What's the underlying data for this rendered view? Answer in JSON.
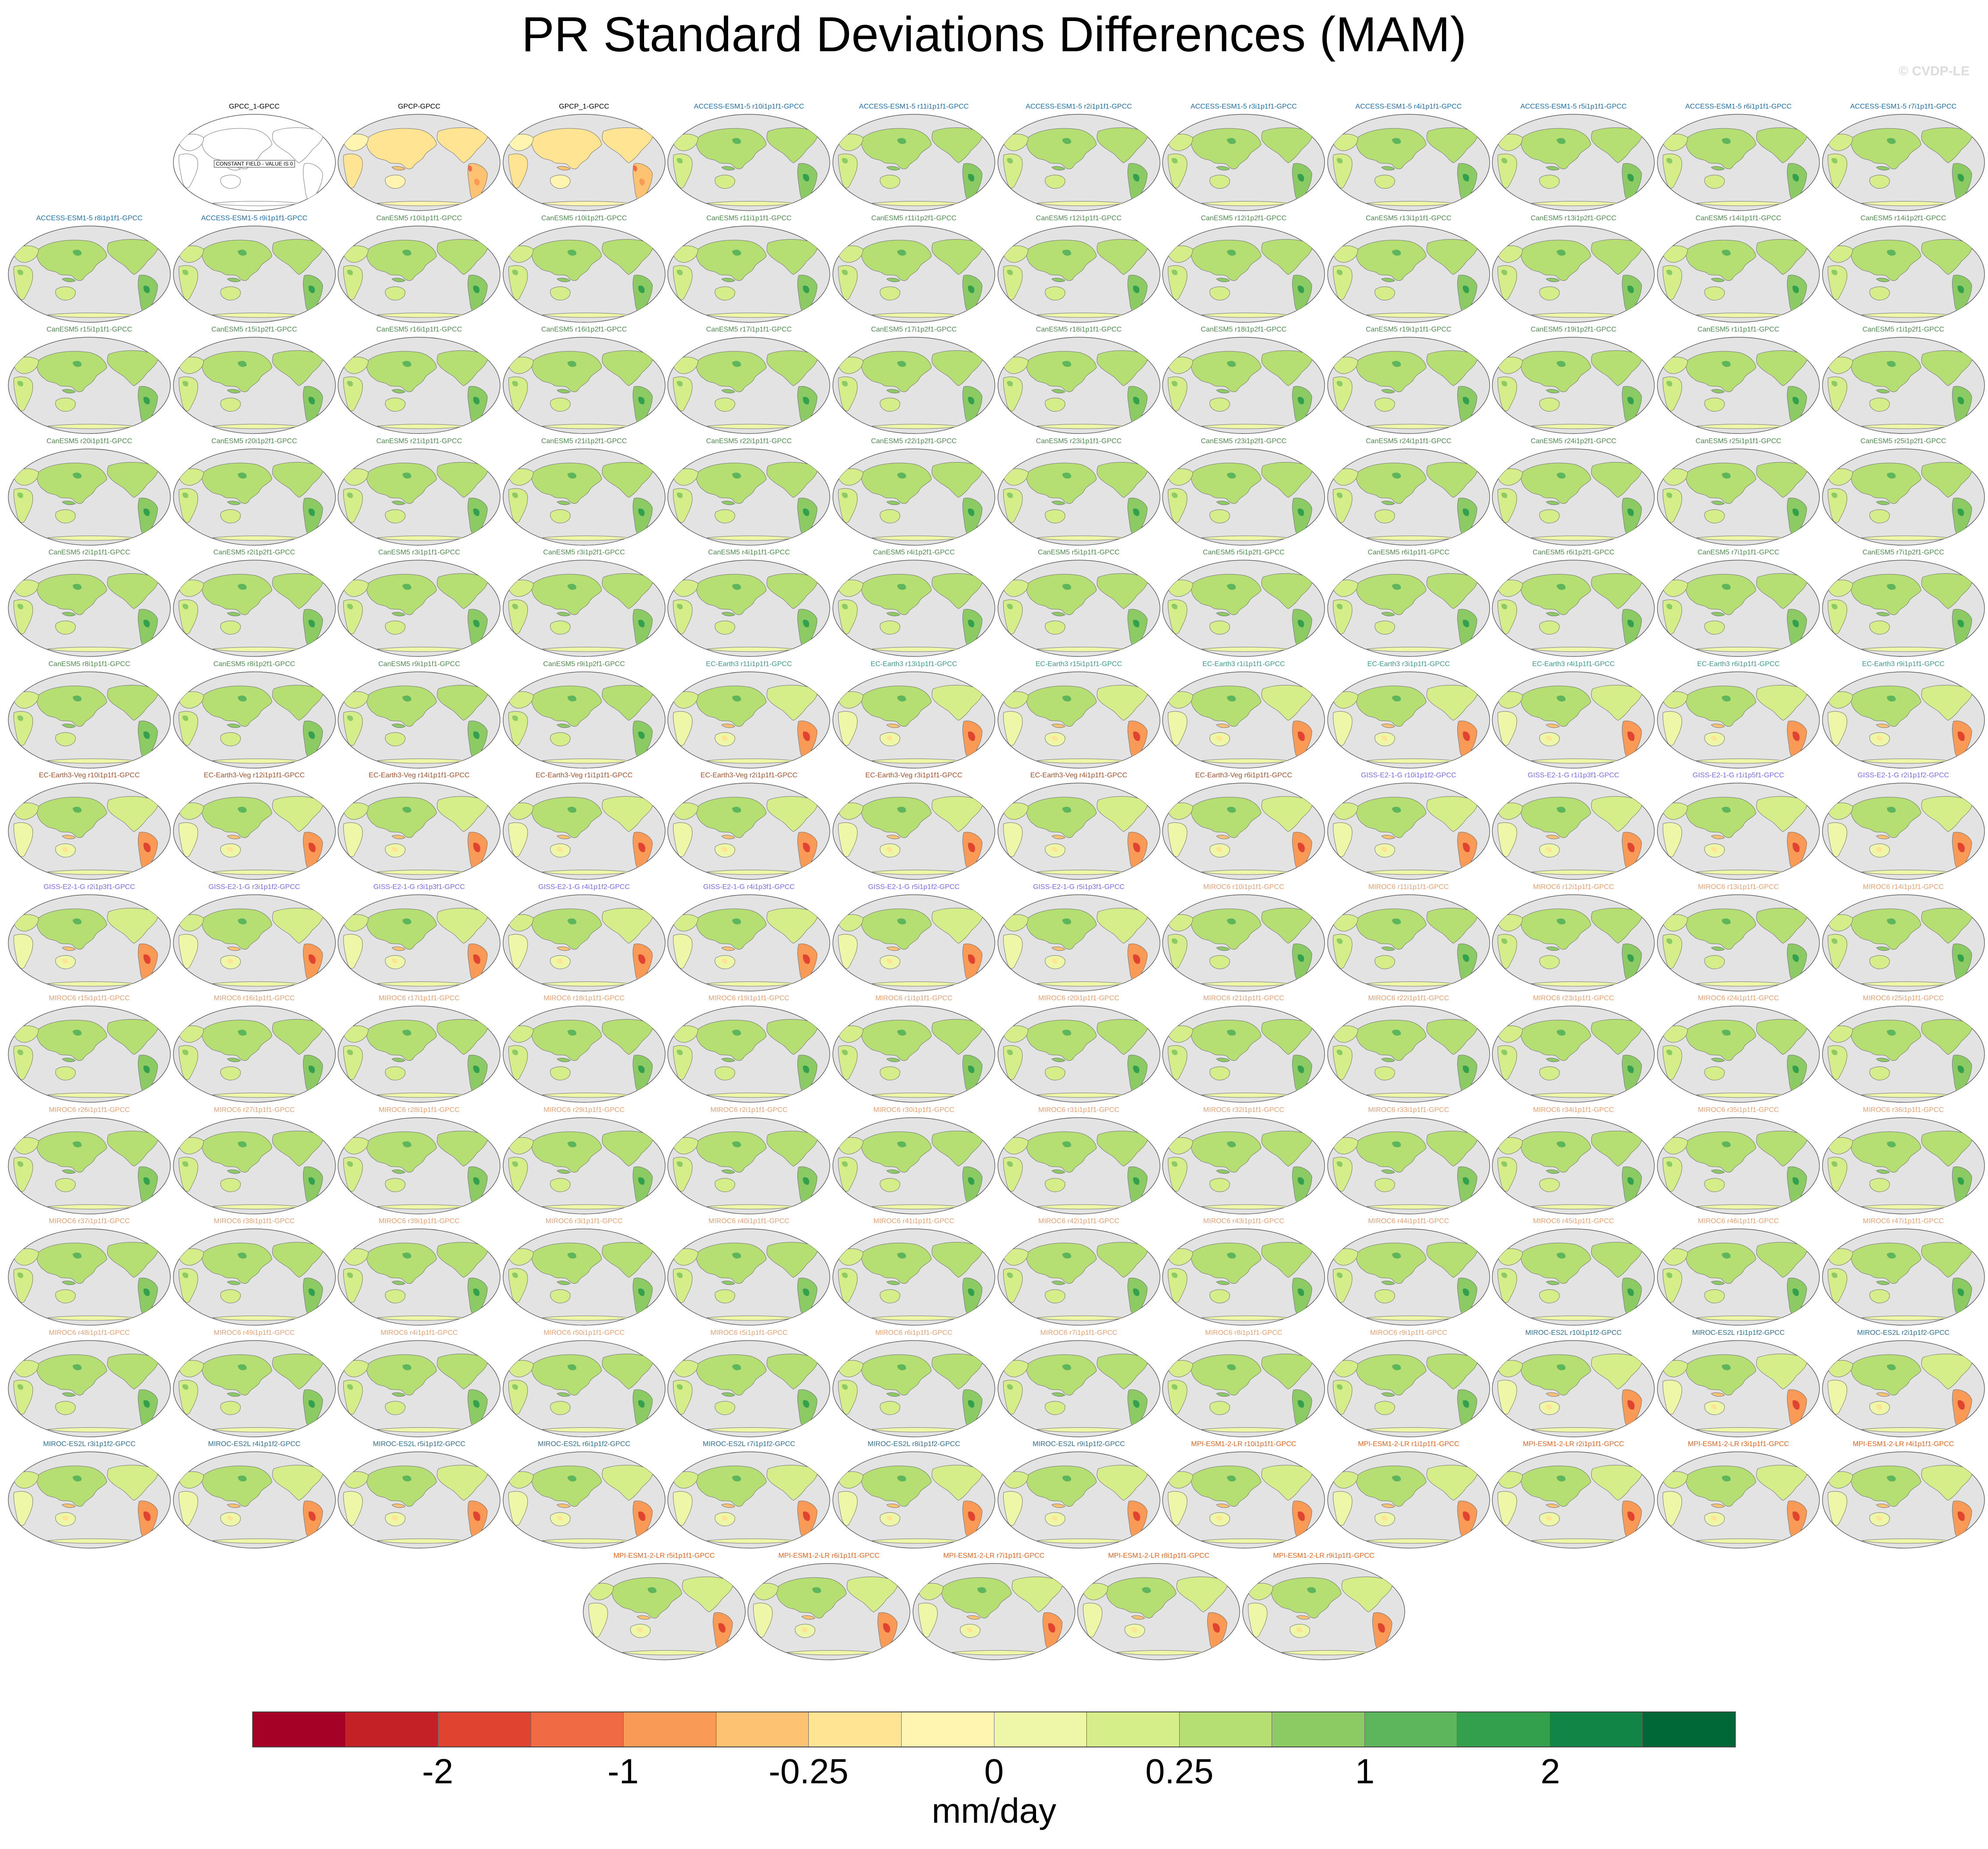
{
  "title": "PR Standard Deviations Differences (MAM)",
  "watermark": "© CVDP-LE",
  "colors": {
    "ocean": "#e3e3e3",
    "coast": "#777777",
    "model_title_colors": {
      "obs": "#000000",
      "ACCESS-ESM1-5": "#1f6fa8",
      "CanESM5": "#4f8a4f",
      "EC-Earth3": "#3c9a8a",
      "EC-Earth3-Veg": "#a0522d",
      "GISS-E2-1-G": "#7b68ee",
      "MIROC6": "#e8a070",
      "MIROC-ES2L": "#2f6f8f",
      "MPI-ESM1-2-LR": "#e8641e"
    }
  },
  "panels": [
    {
      "label": "GPCC_1-GPCC",
      "style": "constant",
      "group": "obs",
      "note": "CONSTANT FIELD - VALUE IS 0"
    },
    {
      "label": "GPCP-GPCC",
      "style": "obs",
      "group": "obs"
    },
    {
      "label": "GPCP_1-GPCC",
      "style": "obs",
      "group": "obs"
    },
    {
      "label": "ACCESS-ESM1-5 r10i1p1f1-GPCC",
      "style": "green",
      "group": "ACCESS-ESM1-5"
    },
    {
      "label": "ACCESS-ESM1-5 r11i1p1f1-GPCC",
      "style": "green",
      "group": "ACCESS-ESM1-5"
    },
    {
      "label": "ACCESS-ESM1-5 r2i1p1f1-GPCC",
      "style": "green",
      "group": "ACCESS-ESM1-5"
    },
    {
      "label": "ACCESS-ESM1-5 r3i1p1f1-GPCC",
      "style": "green",
      "group": "ACCESS-ESM1-5"
    },
    {
      "label": "ACCESS-ESM1-5 r4i1p1f1-GPCC",
      "style": "green",
      "group": "ACCESS-ESM1-5"
    },
    {
      "label": "ACCESS-ESM1-5 r5i1p1f1-GPCC",
      "style": "green",
      "group": "ACCESS-ESM1-5"
    },
    {
      "label": "ACCESS-ESM1-5 r6i1p1f1-GPCC",
      "style": "green",
      "group": "ACCESS-ESM1-5"
    },
    {
      "label": "ACCESS-ESM1-5 r7i1p1f1-GPCC",
      "style": "green",
      "group": "ACCESS-ESM1-5"
    },
    {
      "label": "ACCESS-ESM1-5 r8i1p1f1-GPCC",
      "style": "green",
      "group": "ACCESS-ESM1-5"
    },
    {
      "label": "ACCESS-ESM1-5 r9i1p1f1-GPCC",
      "style": "green",
      "group": "ACCESS-ESM1-5"
    },
    {
      "label": "CanESM5 r10i1p1f1-GPCC",
      "style": "green",
      "group": "CanESM5"
    },
    {
      "label": "CanESM5 r10i1p2f1-GPCC",
      "style": "green",
      "group": "CanESM5"
    },
    {
      "label": "CanESM5 r11i1p1f1-GPCC",
      "style": "green",
      "group": "CanESM5"
    },
    {
      "label": "CanESM5 r11i1p2f1-GPCC",
      "style": "green",
      "group": "CanESM5"
    },
    {
      "label": "CanESM5 r12i1p1f1-GPCC",
      "style": "green",
      "group": "CanESM5"
    },
    {
      "label": "CanESM5 r12i1p2f1-GPCC",
      "style": "green",
      "group": "CanESM5"
    },
    {
      "label": "CanESM5 r13i1p1f1-GPCC",
      "style": "green",
      "group": "CanESM5"
    },
    {
      "label": "CanESM5 r13i1p2f1-GPCC",
      "style": "green",
      "group": "CanESM5"
    },
    {
      "label": "CanESM5 r14i1p1f1-GPCC",
      "style": "green",
      "group": "CanESM5"
    },
    {
      "label": "CanESM5 r14i1p2f1-GPCC",
      "style": "green",
      "group": "CanESM5"
    },
    {
      "label": "CanESM5 r15i1p1f1-GPCC",
      "style": "green",
      "group": "CanESM5"
    },
    {
      "label": "CanESM5 r15i1p2f1-GPCC",
      "style": "green",
      "group": "CanESM5"
    },
    {
      "label": "CanESM5 r16i1p1f1-GPCC",
      "style": "green",
      "group": "CanESM5"
    },
    {
      "label": "CanESM5 r16i1p2f1-GPCC",
      "style": "green",
      "group": "CanESM5"
    },
    {
      "label": "CanESM5 r17i1p1f1-GPCC",
      "style": "green",
      "group": "CanESM5"
    },
    {
      "label": "CanESM5 r17i1p2f1-GPCC",
      "style": "green",
      "group": "CanESM5"
    },
    {
      "label": "CanESM5 r18i1p1f1-GPCC",
      "style": "green",
      "group": "CanESM5"
    },
    {
      "label": "CanESM5 r18i1p2f1-GPCC",
      "style": "green",
      "group": "CanESM5"
    },
    {
      "label": "CanESM5 r19i1p1f1-GPCC",
      "style": "green",
      "group": "CanESM5"
    },
    {
      "label": "CanESM5 r19i1p2f1-GPCC",
      "style": "green",
      "group": "CanESM5"
    },
    {
      "label": "CanESM5 r1i1p1f1-GPCC",
      "style": "green",
      "group": "CanESM5"
    },
    {
      "label": "CanESM5 r1i1p2f1-GPCC",
      "style": "green",
      "group": "CanESM5"
    },
    {
      "label": "CanESM5 r20i1p1f1-GPCC",
      "style": "green",
      "group": "CanESM5"
    },
    {
      "label": "CanESM5 r20i1p2f1-GPCC",
      "style": "green",
      "group": "CanESM5"
    },
    {
      "label": "CanESM5 r21i1p1f1-GPCC",
      "style": "green",
      "group": "CanESM5"
    },
    {
      "label": "CanESM5 r21i1p2f1-GPCC",
      "style": "green",
      "group": "CanESM5"
    },
    {
      "label": "CanESM5 r22i1p1f1-GPCC",
      "style": "green",
      "group": "CanESM5"
    },
    {
      "label": "CanESM5 r22i1p2f1-GPCC",
      "style": "green",
      "group": "CanESM5"
    },
    {
      "label": "CanESM5 r23i1p1f1-GPCC",
      "style": "green",
      "group": "CanESM5"
    },
    {
      "label": "CanESM5 r23i1p2f1-GPCC",
      "style": "green",
      "group": "CanESM5"
    },
    {
      "label": "CanESM5 r24i1p1f1-GPCC",
      "style": "green",
      "group": "CanESM5"
    },
    {
      "label": "CanESM5 r24i1p2f1-GPCC",
      "style": "green",
      "group": "CanESM5"
    },
    {
      "label": "CanESM5 r25i1p1f1-GPCC",
      "style": "green",
      "group": "CanESM5"
    },
    {
      "label": "CanESM5 r25i1p2f1-GPCC",
      "style": "green",
      "group": "CanESM5"
    },
    {
      "label": "CanESM5 r2i1p1f1-GPCC",
      "style": "green",
      "group": "CanESM5"
    },
    {
      "label": "CanESM5 r2i1p2f1-GPCC",
      "style": "green",
      "group": "CanESM5"
    },
    {
      "label": "CanESM5 r3i1p1f1-GPCC",
      "style": "green",
      "group": "CanESM5"
    },
    {
      "label": "CanESM5 r3i1p2f1-GPCC",
      "style": "green",
      "group": "CanESM5"
    },
    {
      "label": "CanESM5 r4i1p1f1-GPCC",
      "style": "green",
      "group": "CanESM5"
    },
    {
      "label": "CanESM5 r4i1p2f1-GPCC",
      "style": "green",
      "group": "CanESM5"
    },
    {
      "label": "CanESM5 r5i1p1f1-GPCC",
      "style": "green",
      "group": "CanESM5"
    },
    {
      "label": "CanESM5 r5i1p2f1-GPCC",
      "style": "green",
      "group": "CanESM5"
    },
    {
      "label": "CanESM5 r6i1p1f1-GPCC",
      "style": "green",
      "group": "CanESM5"
    },
    {
      "label": "CanESM5 r6i1p2f1-GPCC",
      "style": "green",
      "group": "CanESM5"
    },
    {
      "label": "CanESM5 r7i1p1f1-GPCC",
      "style": "green",
      "group": "CanESM5"
    },
    {
      "label": "CanESM5 r7i1p2f1-GPCC",
      "style": "green",
      "group": "CanESM5"
    },
    {
      "label": "CanESM5 r8i1p1f1-GPCC",
      "style": "green",
      "group": "CanESM5"
    },
    {
      "label": "CanESM5 r8i1p2f1-GPCC",
      "style": "green",
      "group": "CanESM5"
    },
    {
      "label": "CanESM5 r9i1p1f1-GPCC",
      "style": "green",
      "group": "CanESM5"
    },
    {
      "label": "CanESM5 r9i1p2f1-GPCC",
      "style": "green",
      "group": "CanESM5"
    },
    {
      "label": "EC-Earth3 r11i1p1f1-GPCC",
      "style": "mixed",
      "group": "EC-Earth3"
    },
    {
      "label": "EC-Earth3 r13i1p1f1-GPCC",
      "style": "mixed",
      "group": "EC-Earth3"
    },
    {
      "label": "EC-Earth3 r15i1p1f1-GPCC",
      "style": "mixed",
      "group": "EC-Earth3"
    },
    {
      "label": "EC-Earth3 r1i1p1f1-GPCC",
      "style": "mixed",
      "group": "EC-Earth3"
    },
    {
      "label": "EC-Earth3 r3i1p1f1-GPCC",
      "style": "mixed",
      "group": "EC-Earth3"
    },
    {
      "label": "EC-Earth3 r4i1p1f1-GPCC",
      "style": "mixed",
      "group": "EC-Earth3"
    },
    {
      "label": "EC-Earth3 r6i1p1f1-GPCC",
      "style": "mixed",
      "group": "EC-Earth3"
    },
    {
      "label": "EC-Earth3 r9i1p1f1-GPCC",
      "style": "mixed",
      "group": "EC-Earth3"
    },
    {
      "label": "EC-Earth3-Veg r10i1p1f1-GPCC",
      "style": "mixed",
      "group": "EC-Earth3-Veg"
    },
    {
      "label": "EC-Earth3-Veg r12i1p1f1-GPCC",
      "style": "mixed",
      "group": "EC-Earth3-Veg"
    },
    {
      "label": "EC-Earth3-Veg r14i1p1f1-GPCC",
      "style": "mixed",
      "group": "EC-Earth3-Veg"
    },
    {
      "label": "EC-Earth3-Veg r1i1p1f1-GPCC",
      "style": "mixed",
      "group": "EC-Earth3-Veg"
    },
    {
      "label": "EC-Earth3-Veg r2i1p1f1-GPCC",
      "style": "mixed",
      "group": "EC-Earth3-Veg"
    },
    {
      "label": "EC-Earth3-Veg r3i1p1f1-GPCC",
      "style": "mixed",
      "group": "EC-Earth3-Veg"
    },
    {
      "label": "EC-Earth3-Veg r4i1p1f1-GPCC",
      "style": "mixed",
      "group": "EC-Earth3-Veg"
    },
    {
      "label": "EC-Earth3-Veg r6i1p1f1-GPCC",
      "style": "mixed",
      "group": "EC-Earth3-Veg"
    },
    {
      "label": "GISS-E2-1-G r10i1p1f2-GPCC",
      "style": "mixed",
      "group": "GISS-E2-1-G"
    },
    {
      "label": "GISS-E2-1-G r1i1p3f1-GPCC",
      "style": "mixed",
      "group": "GISS-E2-1-G"
    },
    {
      "label": "GISS-E2-1-G r1i1p5f1-GPCC",
      "style": "mixed",
      "group": "GISS-E2-1-G"
    },
    {
      "label": "GISS-E2-1-G r2i1p1f2-GPCC",
      "style": "mixed",
      "group": "GISS-E2-1-G"
    },
    {
      "label": "GISS-E2-1-G r2i1p3f1-GPCC",
      "style": "mixed",
      "group": "GISS-E2-1-G"
    },
    {
      "label": "GISS-E2-1-G r3i1p1f2-GPCC",
      "style": "mixed",
      "group": "GISS-E2-1-G"
    },
    {
      "label": "GISS-E2-1-G r3i1p3f1-GPCC",
      "style": "mixed",
      "group": "GISS-E2-1-G"
    },
    {
      "label": "GISS-E2-1-G r4i1p1f2-GPCC",
      "style": "mixed",
      "group": "GISS-E2-1-G"
    },
    {
      "label": "GISS-E2-1-G r4i1p3f1-GPCC",
      "style": "mixed",
      "group": "GISS-E2-1-G"
    },
    {
      "label": "GISS-E2-1-G r5i1p1f2-GPCC",
      "style": "mixed",
      "group": "GISS-E2-1-G"
    },
    {
      "label": "GISS-E2-1-G r5i1p3f1-GPCC",
      "style": "mixed",
      "group": "GISS-E2-1-G"
    },
    {
      "label": "MIROC6 r10i1p1f1-GPCC",
      "style": "green",
      "group": "MIROC6"
    },
    {
      "label": "MIROC6 r11i1p1f1-GPCC",
      "style": "green",
      "group": "MIROC6"
    },
    {
      "label": "MIROC6 r12i1p1f1-GPCC",
      "style": "green",
      "group": "MIROC6"
    },
    {
      "label": "MIROC6 r13i1p1f1-GPCC",
      "style": "green",
      "group": "MIROC6"
    },
    {
      "label": "MIROC6 r14i1p1f1-GPCC",
      "style": "green",
      "group": "MIROC6"
    },
    {
      "label": "MIROC6 r15i1p1f1-GPCC",
      "style": "green",
      "group": "MIROC6"
    },
    {
      "label": "MIROC6 r16i1p1f1-GPCC",
      "style": "green",
      "group": "MIROC6"
    },
    {
      "label": "MIROC6 r17i1p1f1-GPCC",
      "style": "green",
      "group": "MIROC6"
    },
    {
      "label": "MIROC6 r18i1p1f1-GPCC",
      "style": "green",
      "group": "MIROC6"
    },
    {
      "label": "MIROC6 r19i1p1f1-GPCC",
      "style": "green",
      "group": "MIROC6"
    },
    {
      "label": "MIROC6 r1i1p1f1-GPCC",
      "style": "green",
      "group": "MIROC6"
    },
    {
      "label": "MIROC6 r20i1p1f1-GPCC",
      "style": "green",
      "group": "MIROC6"
    },
    {
      "label": "MIROC6 r21i1p1f1-GPCC",
      "style": "green",
      "group": "MIROC6"
    },
    {
      "label": "MIROC6 r22i1p1f1-GPCC",
      "style": "green",
      "group": "MIROC6"
    },
    {
      "label": "MIROC6 r23i1p1f1-GPCC",
      "style": "green",
      "group": "MIROC6"
    },
    {
      "label": "MIROC6 r24i1p1f1-GPCC",
      "style": "green",
      "group": "MIROC6"
    },
    {
      "label": "MIROC6 r25i1p1f1-GPCC",
      "style": "green",
      "group": "MIROC6"
    },
    {
      "label": "MIROC6 r26i1p1f1-GPCC",
      "style": "green",
      "group": "MIROC6"
    },
    {
      "label": "MIROC6 r27i1p1f1-GPCC",
      "style": "green",
      "group": "MIROC6"
    },
    {
      "label": "MIROC6 r28i1p1f1-GPCC",
      "style": "green",
      "group": "MIROC6"
    },
    {
      "label": "MIROC6 r29i1p1f1-GPCC",
      "style": "green",
      "group": "MIROC6"
    },
    {
      "label": "MIROC6 r2i1p1f1-GPCC",
      "style": "green",
      "group": "MIROC6"
    },
    {
      "label": "MIROC6 r30i1p1f1-GPCC",
      "style": "green",
      "group": "MIROC6"
    },
    {
      "label": "MIROC6 r31i1p1f1-GPCC",
      "style": "green",
      "group": "MIROC6"
    },
    {
      "label": "MIROC6 r32i1p1f1-GPCC",
      "style": "green",
      "group": "MIROC6"
    },
    {
      "label": "MIROC6 r33i1p1f1-GPCC",
      "style": "green",
      "group": "MIROC6"
    },
    {
      "label": "MIROC6 r34i1p1f1-GPCC",
      "style": "green",
      "group": "MIROC6"
    },
    {
      "label": "MIROC6 r35i1p1f1-GPCC",
      "style": "green",
      "group": "MIROC6"
    },
    {
      "label": "MIROC6 r36i1p1f1-GPCC",
      "style": "green",
      "group": "MIROC6"
    },
    {
      "label": "MIROC6 r37i1p1f1-GPCC",
      "style": "green",
      "group": "MIROC6"
    },
    {
      "label": "MIROC6 r38i1p1f1-GPCC",
      "style": "green",
      "group": "MIROC6"
    },
    {
      "label": "MIROC6 r39i1p1f1-GPCC",
      "style": "green",
      "group": "MIROC6"
    },
    {
      "label": "MIROC6 r3i1p1f1-GPCC",
      "style": "green",
      "group": "MIROC6"
    },
    {
      "label": "MIROC6 r40i1p1f1-GPCC",
      "style": "green",
      "group": "MIROC6"
    },
    {
      "label": "MIROC6 r41i1p1f1-GPCC",
      "style": "green",
      "group": "MIROC6"
    },
    {
      "label": "MIROC6 r42i1p1f1-GPCC",
      "style": "green",
      "group": "MIROC6"
    },
    {
      "label": "MIROC6 r43i1p1f1-GPCC",
      "style": "green",
      "group": "MIROC6"
    },
    {
      "label": "MIROC6 r44i1p1f1-GPCC",
      "style": "green",
      "group": "MIROC6"
    },
    {
      "label": "MIROC6 r45i1p1f1-GPCC",
      "style": "green",
      "group": "MIROC6"
    },
    {
      "label": "MIROC6 r46i1p1f1-GPCC",
      "style": "green",
      "group": "MIROC6"
    },
    {
      "label": "MIROC6 r47i1p1f1-GPCC",
      "style": "green",
      "group": "MIROC6"
    },
    {
      "label": "MIROC6 r48i1p1f1-GPCC",
      "style": "green",
      "group": "MIROC6"
    },
    {
      "label": "MIROC6 r49i1p1f1-GPCC",
      "style": "green",
      "group": "MIROC6"
    },
    {
      "label": "MIROC6 r4i1p1f1-GPCC",
      "style": "green",
      "group": "MIROC6"
    },
    {
      "label": "MIROC6 r50i1p1f1-GPCC",
      "style": "green",
      "group": "MIROC6"
    },
    {
      "label": "MIROC6 r5i1p1f1-GPCC",
      "style": "green",
      "group": "MIROC6"
    },
    {
      "label": "MIROC6 r6i1p1f1-GPCC",
      "style": "green",
      "group": "MIROC6"
    },
    {
      "label": "MIROC6 r7i1p1f1-GPCC",
      "style": "green",
      "group": "MIROC6"
    },
    {
      "label": "MIROC6 r8i1p1f1-GPCC",
      "style": "green",
      "group": "MIROC6"
    },
    {
      "label": "MIROC6 r9i1p1f1-GPCC",
      "style": "green",
      "group": "MIROC6"
    },
    {
      "label": "MIROC-ES2L r10i1p1f2-GPCC",
      "style": "mixed",
      "group": "MIROC-ES2L"
    },
    {
      "label": "MIROC-ES2L r1i1p1f2-GPCC",
      "style": "mixed",
      "group": "MIROC-ES2L"
    },
    {
      "label": "MIROC-ES2L r2i1p1f2-GPCC",
      "style": "mixed",
      "group": "MIROC-ES2L"
    },
    {
      "label": "MIROC-ES2L r3i1p1f2-GPCC",
      "style": "mixed",
      "group": "MIROC-ES2L"
    },
    {
      "label": "MIROC-ES2L r4i1p1f2-GPCC",
      "style": "mixed",
      "group": "MIROC-ES2L"
    },
    {
      "label": "MIROC-ES2L r5i1p1f2-GPCC",
      "style": "mixed",
      "group": "MIROC-ES2L"
    },
    {
      "label": "MIROC-ES2L r6i1p1f2-GPCC",
      "style": "mixed",
      "group": "MIROC-ES2L"
    },
    {
      "label": "MIROC-ES2L r7i1p1f2-GPCC",
      "style": "mixed",
      "group": "MIROC-ES2L"
    },
    {
      "label": "MIROC-ES2L r8i1p1f2-GPCC",
      "style": "mixed",
      "group": "MIROC-ES2L"
    },
    {
      "label": "MIROC-ES2L r9i1p1f2-GPCC",
      "style": "mixed",
      "group": "MIROC-ES2L"
    },
    {
      "label": "MPI-ESM1-2-LR r10i1p1f1-GPCC",
      "style": "mixed",
      "group": "MPI-ESM1-2-LR"
    },
    {
      "label": "MPI-ESM1-2-LR r1i1p1f1-GPCC",
      "style": "mixed",
      "group": "MPI-ESM1-2-LR"
    },
    {
      "label": "MPI-ESM1-2-LR r2i1p1f1-GPCC",
      "style": "mixed",
      "group": "MPI-ESM1-2-LR"
    },
    {
      "label": "MPI-ESM1-2-LR r3i1p1f1-GPCC",
      "style": "mixed",
      "group": "MPI-ESM1-2-LR"
    },
    {
      "label": "MPI-ESM1-2-LR r4i1p1f1-GPCC",
      "style": "mixed",
      "group": "MPI-ESM1-2-LR"
    },
    {
      "label": "MPI-ESM1-2-LR r5i1p1f1-GPCC",
      "style": "mixed",
      "group": "MPI-ESM1-2-LR"
    },
    {
      "label": "MPI-ESM1-2-LR r6i1p1f1-GPCC",
      "style": "mixed",
      "group": "MPI-ESM1-2-LR"
    },
    {
      "label": "MPI-ESM1-2-LR r7i1p1f1-GPCC",
      "style": "mixed",
      "group": "MPI-ESM1-2-LR"
    },
    {
      "label": "MPI-ESM1-2-LR r8i1p1f1-GPCC",
      "style": "mixed",
      "group": "MPI-ESM1-2-LR"
    },
    {
      "label": "MPI-ESM1-2-LR r9i1p1f1-GPCC",
      "style": "mixed",
      "group": "MPI-ESM1-2-LR"
    }
  ],
  "colorbar": {
    "units": "mm/day",
    "colors": [
      "#a50026",
      "#c42127",
      "#e04430",
      "#f06b43",
      "#f99b56",
      "#fdc372",
      "#fee493",
      "#fff5b0",
      "#eef7a8",
      "#d5ee8a",
      "#b5df72",
      "#8ccb64",
      "#5eb65c",
      "#33a04e",
      "#108546",
      "#006837"
    ],
    "labels": [
      {
        "text": "-2",
        "boundary": 2
      },
      {
        "text": "-1",
        "boundary": 4
      },
      {
        "text": "-0.25",
        "boundary": 6
      },
      {
        "text": "0",
        "boundary": 8
      },
      {
        "text": "0.25",
        "boundary": 10
      },
      {
        "text": "1",
        "boundary": 12
      },
      {
        "text": "2",
        "boundary": 14
      }
    ]
  }
}
